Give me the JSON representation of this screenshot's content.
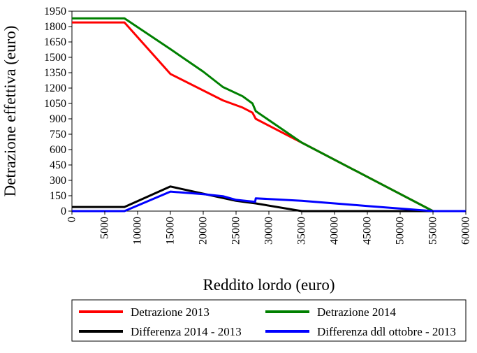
{
  "chart_data": {
    "type": "line",
    "title": "",
    "xlabel": "Reddito lordo (euro)",
    "ylabel": "Detrazione effettiva (euro)",
    "xlim": [
      0,
      60000
    ],
    "ylim": [
      0,
      1950
    ],
    "x_ticks": [
      0,
      5000,
      10000,
      15000,
      20000,
      25000,
      30000,
      35000,
      40000,
      45000,
      50000,
      55000,
      60000
    ],
    "y_ticks": [
      0,
      150,
      300,
      450,
      600,
      750,
      900,
      1050,
      1200,
      1350,
      1500,
      1650,
      1800,
      1950
    ],
    "grid": false,
    "legend_position": "bottom",
    "series": [
      {
        "name": "Detrazione 2013",
        "color": "#ff0000",
        "points": [
          [
            0,
            1840
          ],
          [
            8000,
            1840
          ],
          [
            15000,
            1338
          ],
          [
            23000,
            1080
          ],
          [
            26000,
            1010
          ],
          [
            27500,
            960
          ],
          [
            28000,
            900
          ],
          [
            35000,
            668
          ],
          [
            55000,
            0
          ],
          [
            60000,
            0
          ]
        ]
      },
      {
        "name": "Detrazione 2014",
        "color": "#008000",
        "points": [
          [
            0,
            1880
          ],
          [
            8000,
            1880
          ],
          [
            15000,
            1580
          ],
          [
            20000,
            1360
          ],
          [
            23000,
            1210
          ],
          [
            26000,
            1120
          ],
          [
            27500,
            1050
          ],
          [
            28000,
            975
          ],
          [
            35000,
            668
          ],
          [
            55000,
            0
          ],
          [
            60000,
            0
          ]
        ]
      },
      {
        "name": "Differenza 2014 - 2013",
        "color": "#000000",
        "points": [
          [
            0,
            40
          ],
          [
            8000,
            40
          ],
          [
            15000,
            240
          ],
          [
            20000,
            170
          ],
          [
            25000,
            100
          ],
          [
            28000,
            75
          ],
          [
            35000,
            0
          ],
          [
            60000,
            0
          ]
        ]
      },
      {
        "name": "Differenza ddl ottobre - 2013",
        "color": "#0000ff",
        "points": [
          [
            0,
            0
          ],
          [
            8000,
            0
          ],
          [
            15000,
            190
          ],
          [
            20000,
            165
          ],
          [
            23000,
            145
          ],
          [
            25000,
            110
          ],
          [
            27900,
            90
          ],
          [
            28000,
            125
          ],
          [
            35000,
            100
          ],
          [
            45000,
            50
          ],
          [
            55000,
            0
          ],
          [
            60000,
            0
          ]
        ]
      }
    ]
  }
}
